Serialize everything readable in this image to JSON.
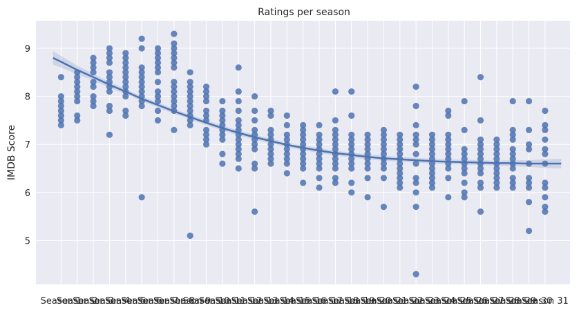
{
  "chart_data": {
    "type": "scatter",
    "title": "Ratings per season",
    "xlabel": "",
    "ylabel": "IMDB Score",
    "yticks": [
      "5",
      "6",
      "7",
      "8",
      "9"
    ],
    "ylim": [
      4.05,
      9.6
    ],
    "categories": [
      "Season 1",
      "Season 2",
      "Season 3",
      "Season 4",
      "Season 5",
      "Season 6",
      "Season 7",
      "Season 8",
      "Season 9",
      "Season 10",
      "Season 11",
      "Season 12",
      "Season 13",
      "Season 14",
      "Season 15",
      "Season 16",
      "Season 17",
      "Season 18",
      "Season 19",
      "Season 20",
      "Season 21",
      "Season 22",
      "Season 23",
      "Season 24",
      "Season 25",
      "Season 26",
      "Season 27",
      "Season 28",
      "Season 29",
      "Season 30",
      "Season 31"
    ],
    "grid": true,
    "background": "#eaeaf2",
    "point_color": "#4c72b0",
    "series": [
      {
        "season": 1,
        "values": [
          8.4,
          8.0,
          7.9,
          7.8,
          7.7,
          7.6,
          7.5,
          7.4
        ]
      },
      {
        "season": 2,
        "values": [
          8.5,
          8.4,
          8.3,
          8.2,
          8.1,
          8.0,
          7.9,
          7.6,
          7.5
        ]
      },
      {
        "season": 3,
        "values": [
          8.8,
          8.7,
          8.6,
          8.5,
          8.3,
          8.2,
          8.0,
          7.9,
          7.8
        ]
      },
      {
        "season": 4,
        "values": [
          9.0,
          8.9,
          8.8,
          8.7,
          8.5,
          8.4,
          8.3,
          8.2,
          8.1,
          7.8,
          7.7,
          7.2
        ]
      },
      {
        "season": 5,
        "values": [
          8.9,
          8.8,
          8.7,
          8.6,
          8.5,
          8.4,
          8.3,
          8.2,
          8.1,
          8.0,
          7.7,
          7.6
        ]
      },
      {
        "season": 6,
        "values": [
          9.2,
          9.0,
          8.6,
          8.5,
          8.4,
          8.3,
          8.2,
          8.1,
          8.0,
          7.9,
          7.8,
          5.9
        ]
      },
      {
        "season": 7,
        "values": [
          9.0,
          8.9,
          8.8,
          8.7,
          8.6,
          8.5,
          8.3,
          8.1,
          8.0,
          7.9,
          7.7,
          7.5
        ]
      },
      {
        "season": 8,
        "values": [
          9.3,
          9.1,
          9.0,
          8.9,
          8.8,
          8.7,
          8.6,
          8.3,
          8.2,
          8.1,
          8.0,
          7.9,
          7.8,
          7.7,
          7.3
        ]
      },
      {
        "season": 9,
        "values": [
          8.5,
          8.3,
          8.2,
          8.1,
          8.0,
          7.9,
          7.8,
          7.7,
          7.6,
          7.5,
          7.4,
          5.1
        ]
      },
      {
        "season": 10,
        "values": [
          8.2,
          8.1,
          8.0,
          7.9,
          7.7,
          7.6,
          7.5,
          7.3,
          7.2,
          7.1,
          7.0
        ]
      },
      {
        "season": 11,
        "values": [
          7.9,
          7.7,
          7.6,
          7.5,
          7.4,
          7.3,
          7.2,
          7.1,
          6.8,
          6.6
        ]
      },
      {
        "season": 12,
        "values": [
          8.6,
          8.1,
          7.9,
          7.7,
          7.5,
          7.4,
          7.3,
          7.2,
          7.1,
          7.0,
          6.9,
          6.8,
          6.7,
          6.5
        ]
      },
      {
        "season": 13,
        "values": [
          8.0,
          7.7,
          7.5,
          7.3,
          7.2,
          7.1,
          7.0,
          6.9,
          6.6,
          6.5,
          5.6
        ]
      },
      {
        "season": 14,
        "values": [
          7.7,
          7.6,
          7.3,
          7.2,
          7.1,
          7.0,
          6.9,
          6.8,
          6.7,
          6.6
        ]
      },
      {
        "season": 15,
        "values": [
          7.6,
          7.4,
          7.2,
          7.1,
          7.0,
          6.9,
          6.8,
          6.7,
          6.6,
          6.4
        ]
      },
      {
        "season": 16,
        "values": [
          7.4,
          7.3,
          7.2,
          7.1,
          7.0,
          6.9,
          6.8,
          6.7,
          6.6,
          6.5,
          6.2
        ]
      },
      {
        "season": 17,
        "values": [
          7.4,
          7.2,
          7.1,
          7.0,
          6.9,
          6.8,
          6.7,
          6.6,
          6.5,
          6.3,
          6.1
        ]
      },
      {
        "season": 18,
        "values": [
          8.1,
          7.5,
          7.3,
          7.2,
          7.1,
          7.0,
          6.9,
          6.8,
          6.7,
          6.6,
          6.5,
          6.3,
          6.2
        ]
      },
      {
        "season": 19,
        "values": [
          8.1,
          7.6,
          7.2,
          7.1,
          7.0,
          6.9,
          6.8,
          6.7,
          6.6,
          6.5,
          6.2,
          6.0
        ]
      },
      {
        "season": 20,
        "values": [
          7.2,
          7.1,
          7.0,
          6.9,
          6.8,
          6.7,
          6.6,
          6.5,
          6.3,
          5.9
        ]
      },
      {
        "season": 21,
        "values": [
          7.3,
          7.2,
          7.1,
          7.0,
          6.9,
          6.8,
          6.7,
          6.6,
          6.5,
          6.3,
          5.7
        ]
      },
      {
        "season": 22,
        "values": [
          7.2,
          7.1,
          7.0,
          6.9,
          6.8,
          6.7,
          6.6,
          6.5,
          6.4,
          6.3,
          6.2,
          6.1
        ]
      },
      {
        "season": 23,
        "values": [
          8.2,
          7.8,
          7.4,
          7.2,
          7.1,
          7.0,
          6.8,
          6.6,
          6.3,
          6.2,
          6.0,
          5.7,
          4.3
        ]
      },
      {
        "season": 24,
        "values": [
          7.2,
          7.1,
          7.0,
          6.9,
          6.8,
          6.7,
          6.6,
          6.5,
          6.4,
          6.3,
          6.2,
          6.1
        ]
      },
      {
        "season": 25,
        "values": [
          7.7,
          7.6,
          7.2,
          7.1,
          7.0,
          6.9,
          6.8,
          6.7,
          6.6,
          6.5,
          6.3,
          5.9
        ]
      },
      {
        "season": 26,
        "values": [
          7.9,
          7.3,
          6.9,
          6.8,
          6.7,
          6.6,
          6.5,
          6.4,
          6.2,
          6.0,
          5.9
        ]
      },
      {
        "season": 27,
        "values": [
          8.4,
          7.5,
          7.1,
          7.0,
          6.9,
          6.8,
          6.7,
          6.6,
          6.5,
          6.4,
          6.2,
          6.1,
          5.6
        ]
      },
      {
        "season": 28,
        "values": [
          7.1,
          7.0,
          6.9,
          6.8,
          6.7,
          6.6,
          6.5,
          6.4,
          6.3,
          6.2,
          6.1
        ]
      },
      {
        "season": 29,
        "values": [
          7.9,
          7.3,
          7.2,
          7.1,
          6.9,
          6.8,
          6.7,
          6.6,
          6.5,
          6.3,
          6.2,
          6.1
        ]
      },
      {
        "season": 30,
        "values": [
          7.9,
          7.3,
          7.0,
          6.9,
          6.6,
          6.3,
          6.2,
          6.1,
          5.8,
          5.2
        ]
      },
      {
        "season": 31,
        "values": [
          7.7,
          7.4,
          7.3,
          7.1,
          6.9,
          6.8,
          6.6,
          6.2,
          6.1,
          5.9,
          5.7,
          5.6
        ]
      }
    ],
    "trend": {
      "x": [
        0.5,
        1,
        2,
        3,
        4,
        5,
        6,
        7,
        8,
        9,
        10,
        11,
        12,
        13,
        14,
        15,
        16,
        17,
        18,
        19,
        20,
        21,
        22,
        23,
        24,
        25,
        26,
        27,
        28,
        29,
        30,
        31,
        32
      ],
      "y": [
        8.8,
        8.72,
        8.55,
        8.4,
        8.24,
        8.1,
        7.95,
        7.82,
        7.69,
        7.57,
        7.45,
        7.34,
        7.24,
        7.15,
        7.07,
        6.99,
        6.93,
        6.87,
        6.82,
        6.78,
        6.74,
        6.71,
        6.69,
        6.67,
        6.65,
        6.64,
        6.63,
        6.62,
        6.61,
        6.61,
        6.6,
        6.6,
        6.6
      ],
      "ci_halfwidth": [
        0.14,
        0.12,
        0.09,
        0.07,
        0.06,
        0.05,
        0.05,
        0.05,
        0.05,
        0.05,
        0.05,
        0.05,
        0.05,
        0.05,
        0.05,
        0.05,
        0.05,
        0.05,
        0.05,
        0.05,
        0.05,
        0.05,
        0.05,
        0.05,
        0.05,
        0.05,
        0.05,
        0.05,
        0.05,
        0.06,
        0.07,
        0.09,
        0.1
      ]
    }
  }
}
